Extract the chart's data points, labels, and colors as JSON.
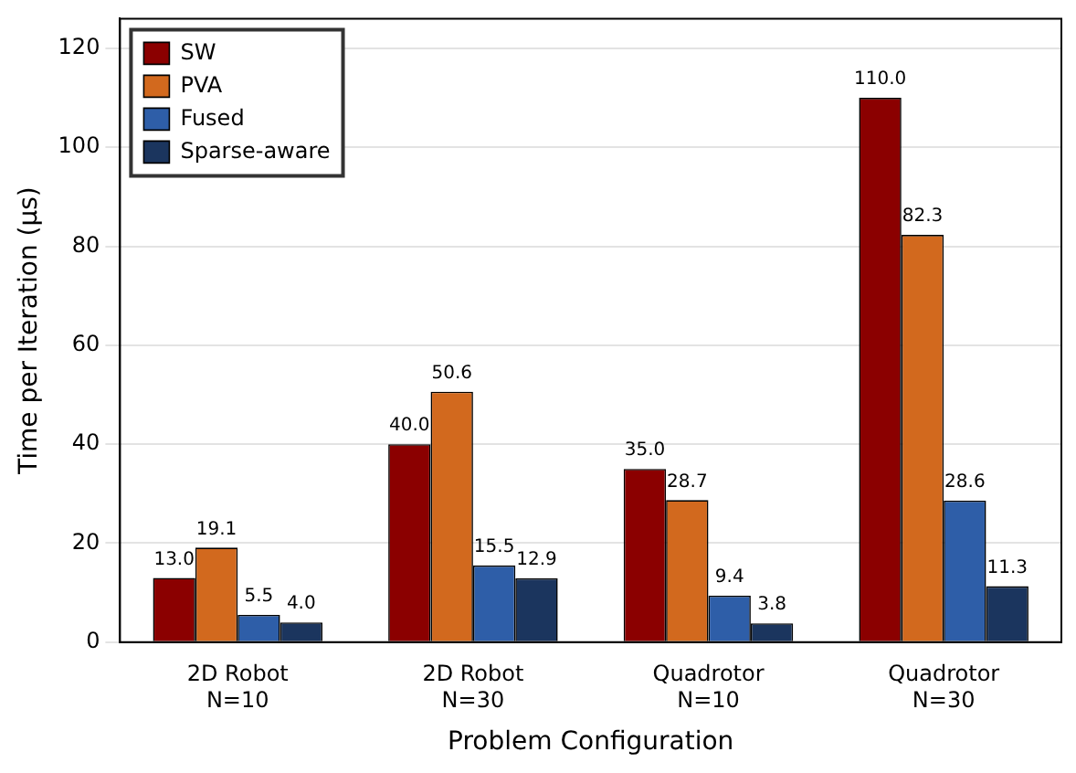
{
  "chart_data": {
    "type": "bar",
    "xlabel": "Problem Configuration",
    "ylabel": "Time per Iteration (μs)",
    "categories": [
      "2D Robot\nN=10",
      "2D Robot\nN=30",
      "Quadrotor\nN=10",
      "Quadrotor\nN=30"
    ],
    "series": [
      {
        "name": "SW",
        "color": "#8b0000",
        "values": [
          13.0,
          40.0,
          35.0,
          110.0
        ],
        "value_labels": [
          "13.0",
          "40.0",
          "35.0",
          "110.0"
        ]
      },
      {
        "name": "PVA",
        "color": "#d2691e",
        "values": [
          19.1,
          50.6,
          28.7,
          82.3
        ],
        "value_labels": [
          "19.1",
          "50.6",
          "28.7",
          "82.3"
        ]
      },
      {
        "name": "Fused",
        "color": "#2e5ea8",
        "values": [
          5.5,
          15.5,
          9.4,
          28.6
        ],
        "value_labels": [
          "5.5",
          "15.5",
          "9.4",
          "28.6"
        ]
      },
      {
        "name": "Sparse-aware",
        "color": "#1b355e",
        "values": [
          4.0,
          12.9,
          3.8,
          11.3
        ],
        "value_labels": [
          "4.0",
          "12.9",
          "3.8",
          "11.3"
        ]
      }
    ],
    "ylim": [
      0,
      126
    ],
    "yticks": [
      0,
      20,
      40,
      60,
      80,
      100,
      120
    ],
    "grid": "y",
    "legend": "top left"
  }
}
